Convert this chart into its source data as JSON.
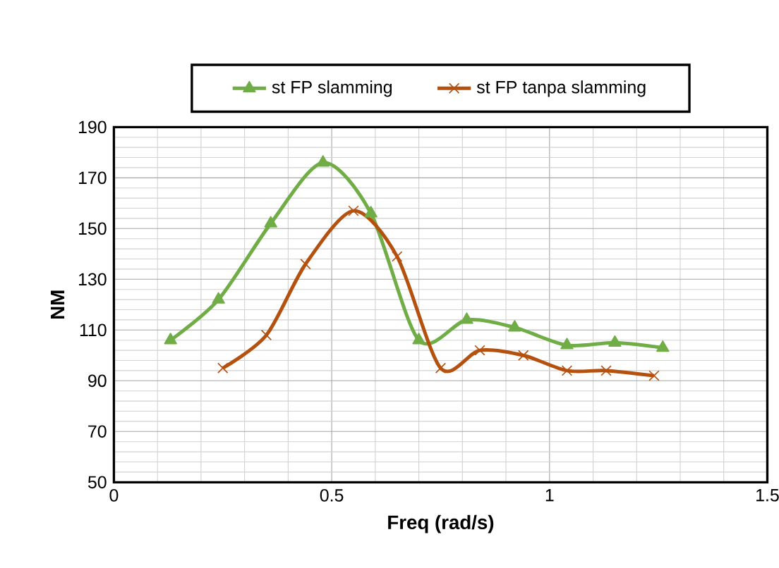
{
  "chart_data": {
    "type": "line",
    "xlabel": "Freq (rad/s)",
    "ylabel": "NM",
    "xlim": [
      0,
      1.5
    ],
    "xticks": [
      0,
      0.5,
      1,
      1.5
    ],
    "ylim": [
      50,
      190
    ],
    "yticks": [
      50,
      70,
      90,
      110,
      130,
      150,
      170,
      190
    ],
    "grid": true,
    "legend": "top",
    "line_style": "solid",
    "series": [
      {
        "name": "st FP slamming",
        "color": "#70ad47",
        "marker": "triangle",
        "x": [
          0.13,
          0.24,
          0.36,
          0.48,
          0.59,
          0.7,
          0.81,
          0.92,
          1.04,
          1.15,
          1.26
        ],
        "values": [
          106,
          122,
          152,
          176,
          156,
          106,
          114,
          111,
          104,
          105,
          103
        ]
      },
      {
        "name": "st FP tanpa slamming",
        "color": "#b5510f",
        "marker": "cross",
        "x": [
          0.25,
          0.35,
          0.44,
          0.55,
          0.65,
          0.75,
          0.84,
          0.94,
          1.04,
          1.13,
          1.24
        ],
        "values": [
          95,
          108,
          136,
          157,
          139,
          95,
          102,
          100,
          94,
          94,
          92
        ]
      }
    ]
  }
}
